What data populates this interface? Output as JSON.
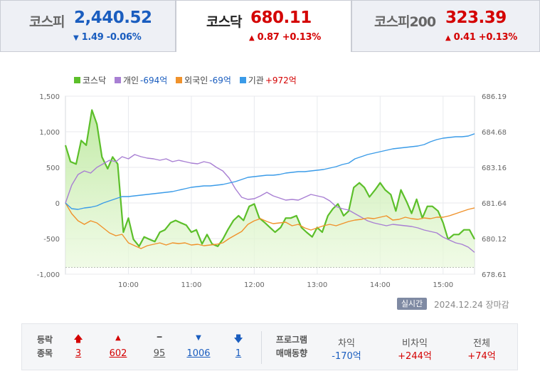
{
  "tabs": [
    {
      "name": "코스피",
      "value": "2,440.52",
      "arrow": "▼",
      "change": "1.49 -0.06%",
      "dir": "down"
    },
    {
      "name": "코스닥",
      "value": "680.11",
      "arrow": "▲",
      "change": "0.87 +0.13%",
      "dir": "up"
    },
    {
      "name": "코스피200",
      "value": "323.39",
      "arrow": "▲",
      "change": "0.41 +0.13%",
      "dir": "up"
    }
  ],
  "legend": [
    {
      "label": "코스닥",
      "value": "",
      "color": "#5cbf2a",
      "value_color": "#444"
    },
    {
      "label": "개인",
      "value": "-694억",
      "color": "#a87fd3",
      "value_color": "#1a5dbf"
    },
    {
      "label": "외국인",
      "value": "-69억",
      "color": "#f0922b",
      "value_color": "#1a5dbf"
    },
    {
      "label": "기관",
      "value": "+972억",
      "color": "#3a9be8",
      "value_color": "#d40000"
    }
  ],
  "chart_data": {
    "type": "line",
    "left_ticks": [
      "1,500",
      "1,000",
      "500",
      "0",
      "-500",
      "-1,000"
    ],
    "right_ticks": [
      "686.19",
      "684.68",
      "683.16",
      "681.64",
      "680.12",
      "678.61"
    ],
    "x_ticks": [
      "10:00",
      "11:00",
      "12:00",
      "13:00",
      "14:00",
      "15:00"
    ],
    "x_range": [
      9.0,
      15.5
    ],
    "ylim_left": [
      -1000,
      1500
    ],
    "ylim_right": [
      678.61,
      686.19
    ],
    "series": [
      {
        "name": "코스닥",
        "axis": "right",
        "fill": true,
        "x": [
          9.0,
          9.08,
          9.17,
          9.25,
          9.33,
          9.42,
          9.5,
          9.58,
          9.67,
          9.75,
          9.83,
          9.92,
          10.0,
          10.08,
          10.17,
          10.25,
          10.33,
          10.42,
          10.5,
          10.58,
          10.67,
          10.75,
          10.83,
          10.92,
          11.0,
          11.08,
          11.17,
          11.25,
          11.33,
          11.42,
          11.5,
          11.58,
          11.67,
          11.75,
          11.83,
          11.92,
          12.0,
          12.08,
          12.17,
          12.25,
          12.33,
          12.42,
          12.5,
          12.58,
          12.67,
          12.75,
          12.83,
          12.92,
          13.0,
          13.08,
          13.17,
          13.25,
          13.33,
          13.42,
          13.5,
          13.58,
          13.67,
          13.75,
          13.83,
          13.92,
          14.0,
          14.08,
          14.17,
          14.25,
          14.33,
          14.42,
          14.5,
          14.58,
          14.67,
          14.75,
          14.83,
          14.92,
          15.0,
          15.08,
          15.17,
          15.25,
          15.33,
          15.42,
          15.5
        ],
        "y": [
          684.1,
          683.4,
          683.3,
          684.3,
          684.1,
          685.6,
          685.0,
          683.6,
          683.1,
          683.6,
          683.3,
          680.4,
          681.0,
          680.1,
          679.8,
          680.2,
          680.1,
          680.0,
          680.4,
          680.5,
          680.8,
          680.9,
          680.8,
          680.7,
          680.4,
          680.5,
          679.9,
          680.3,
          679.9,
          679.8,
          680.1,
          680.5,
          680.9,
          681.1,
          680.9,
          681.5,
          681.6,
          681.0,
          680.8,
          680.6,
          680.4,
          680.6,
          681.0,
          681.0,
          681.1,
          680.6,
          680.4,
          680.2,
          680.6,
          680.4,
          681.1,
          681.4,
          681.6,
          681.1,
          681.3,
          682.3,
          682.5,
          682.3,
          681.9,
          682.2,
          682.5,
          682.2,
          682.0,
          681.3,
          682.2,
          681.7,
          681.2,
          681.8,
          681.0,
          681.5,
          681.5,
          681.3,
          680.8,
          680.1,
          680.3,
          680.3,
          680.5,
          680.5,
          680.1
        ]
      },
      {
        "name": "개인",
        "axis": "left",
        "x": [
          9.0,
          9.1,
          9.2,
          9.3,
          9.4,
          9.5,
          9.6,
          9.7,
          9.8,
          9.9,
          10.0,
          10.1,
          10.2,
          10.3,
          10.4,
          10.5,
          10.6,
          10.7,
          10.8,
          10.9,
          11.0,
          11.1,
          11.2,
          11.3,
          11.4,
          11.5,
          11.6,
          11.7,
          11.8,
          11.9,
          12.0,
          12.1,
          12.2,
          12.3,
          12.4,
          12.5,
          12.6,
          12.7,
          12.8,
          12.9,
          13.0,
          13.1,
          13.2,
          13.3,
          13.4,
          13.5,
          13.6,
          13.7,
          13.8,
          13.9,
          14.0,
          14.1,
          14.2,
          14.3,
          14.4,
          14.5,
          14.6,
          14.7,
          14.8,
          14.9,
          15.0,
          15.1,
          15.2,
          15.3,
          15.4,
          15.5
        ],
        "y": [
          0,
          250,
          400,
          450,
          420,
          500,
          550,
          600,
          580,
          650,
          620,
          680,
          650,
          630,
          620,
          600,
          620,
          580,
          600,
          580,
          560,
          550,
          580,
          560,
          500,
          450,
          350,
          200,
          80,
          50,
          60,
          100,
          150,
          100,
          70,
          40,
          50,
          40,
          80,
          120,
          100,
          80,
          30,
          -50,
          -80,
          -100,
          -150,
          -200,
          -250,
          -280,
          -300,
          -320,
          -300,
          -310,
          -320,
          -330,
          -350,
          -380,
          -400,
          -420,
          -480,
          -520,
          -560,
          -580,
          -620,
          -694
        ]
      },
      {
        "name": "외국인",
        "axis": "left",
        "x": [
          9.0,
          9.1,
          9.2,
          9.3,
          9.4,
          9.5,
          9.6,
          9.7,
          9.8,
          9.9,
          10.0,
          10.1,
          10.2,
          10.3,
          10.4,
          10.5,
          10.6,
          10.7,
          10.8,
          10.9,
          11.0,
          11.1,
          11.2,
          11.3,
          11.4,
          11.5,
          11.6,
          11.7,
          11.8,
          11.9,
          12.0,
          12.1,
          12.2,
          12.3,
          12.4,
          12.5,
          12.6,
          12.7,
          12.8,
          12.9,
          13.0,
          13.1,
          13.2,
          13.3,
          13.4,
          13.5,
          13.6,
          13.7,
          13.8,
          13.9,
          14.0,
          14.1,
          14.2,
          14.3,
          14.4,
          14.5,
          14.6,
          14.7,
          14.8,
          14.9,
          15.0,
          15.1,
          15.2,
          15.3,
          15.4,
          15.5
        ],
        "y": [
          0,
          -150,
          -250,
          -300,
          -250,
          -280,
          -350,
          -420,
          -460,
          -440,
          -560,
          -600,
          -640,
          -600,
          -580,
          -560,
          -590,
          -560,
          -570,
          -560,
          -590,
          -580,
          -600,
          -590,
          -580,
          -560,
          -500,
          -450,
          -400,
          -300,
          -250,
          -220,
          -260,
          -290,
          -280,
          -270,
          -320,
          -300,
          -350,
          -380,
          -350,
          -320,
          -300,
          -320,
          -290,
          -260,
          -240,
          -230,
          -210,
          -220,
          -200,
          -180,
          -240,
          -230,
          -200,
          -220,
          -230,
          -210,
          -220,
          -200,
          -200,
          -180,
          -150,
          -120,
          -90,
          -69
        ]
      },
      {
        "name": "기관",
        "axis": "left",
        "x": [
          9.0,
          9.1,
          9.2,
          9.3,
          9.4,
          9.5,
          9.6,
          9.7,
          9.8,
          9.9,
          10.0,
          10.1,
          10.2,
          10.3,
          10.4,
          10.5,
          10.6,
          10.7,
          10.8,
          10.9,
          11.0,
          11.1,
          11.2,
          11.3,
          11.4,
          11.5,
          11.6,
          11.7,
          11.8,
          11.9,
          12.0,
          12.1,
          12.2,
          12.3,
          12.4,
          12.5,
          12.6,
          12.7,
          12.8,
          12.9,
          13.0,
          13.1,
          13.2,
          13.3,
          13.4,
          13.5,
          13.6,
          13.7,
          13.8,
          13.9,
          14.0,
          14.1,
          14.2,
          14.3,
          14.4,
          14.5,
          14.6,
          14.7,
          14.8,
          14.9,
          15.0,
          15.1,
          15.2,
          15.3,
          15.4,
          15.5
        ],
        "y": [
          0,
          -80,
          -90,
          -70,
          -60,
          -40,
          0,
          30,
          60,
          90,
          90,
          100,
          110,
          120,
          130,
          140,
          150,
          160,
          180,
          200,
          220,
          230,
          240,
          240,
          250,
          260,
          280,
          300,
          330,
          360,
          370,
          380,
          390,
          390,
          400,
          420,
          430,
          440,
          440,
          450,
          460,
          470,
          490,
          510,
          540,
          560,
          620,
          650,
          680,
          700,
          720,
          740,
          760,
          770,
          780,
          790,
          800,
          820,
          860,
          890,
          910,
          920,
          930,
          930,
          940,
          972
        ]
      }
    ],
    "baseline_value": 678.9
  },
  "status": {
    "badge": "실시간",
    "date": "2024.12.24",
    "close": "장마감"
  },
  "breadth": {
    "label_top": "등락",
    "label_bottom": "종목",
    "items": [
      {
        "icon": "🡅",
        "count": "3",
        "color": "#d40000",
        "kind": "upper-limit"
      },
      {
        "icon": "▲",
        "count": "602",
        "color": "#d40000",
        "kind": "rise"
      },
      {
        "icon": "━",
        "count": "95",
        "color": "#555555",
        "kind": "unchanged"
      },
      {
        "icon": "▼",
        "count": "1006",
        "color": "#1a5dbf",
        "kind": "fall"
      },
      {
        "icon": "🡇",
        "count": "1",
        "color": "#1a5dbf",
        "kind": "lower-limit"
      }
    ]
  },
  "program": {
    "label_top": "프로그램",
    "label_bottom": "매매동향",
    "items": [
      {
        "label": "차익",
        "value": "-170억",
        "color": "#1a5dbf"
      },
      {
        "label": "비차익",
        "value": "+244억",
        "color": "#d40000"
      },
      {
        "label": "전체",
        "value": "+74억",
        "color": "#d40000"
      }
    ]
  }
}
